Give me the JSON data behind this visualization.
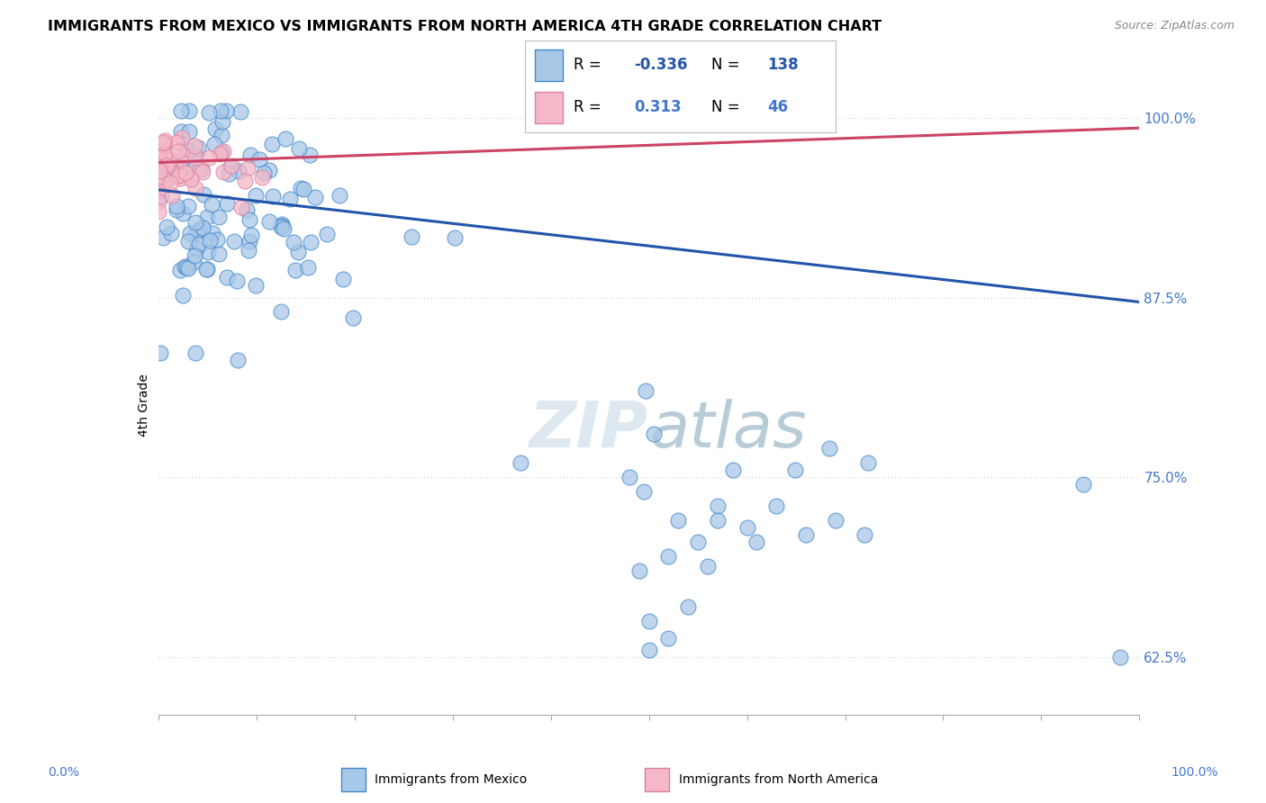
{
  "title": "IMMIGRANTS FROM MEXICO VS IMMIGRANTS FROM NORTH AMERICA 4TH GRADE CORRELATION CHART",
  "source": "Source: ZipAtlas.com",
  "ylabel": "4th Grade",
  "yticks": [
    0.625,
    0.75,
    0.875,
    1.0
  ],
  "ytick_labels": [
    "62.5%",
    "75.0%",
    "87.5%",
    "100.0%"
  ],
  "xlim": [
    0.0,
    1.0
  ],
  "ylim": [
    0.585,
    1.015
  ],
  "legend_blue_label": "Immigrants from Mexico",
  "legend_pink_label": "Immigrants from North America",
  "R_blue": -0.336,
  "N_blue": 138,
  "R_pink": 0.313,
  "N_pink": 46,
  "blue_scatter_color": "#a8c8e8",
  "blue_edge_color": "#4488cc",
  "blue_line_color": "#2255aa",
  "pink_scatter_color": "#f4b8c8",
  "pink_edge_color": "#e080a0",
  "pink_line_color": "#cc4466",
  "axis_label_color": "#4477cc",
  "watermark_color": "#dde8f0",
  "background_color": "#ffffff",
  "grid_color": "#dddddd",
  "blue_trend_start_y": 0.95,
  "blue_trend_end_y": 0.872,
  "pink_trend_start_y": 0.969,
  "pink_trend_end_y": 0.993
}
